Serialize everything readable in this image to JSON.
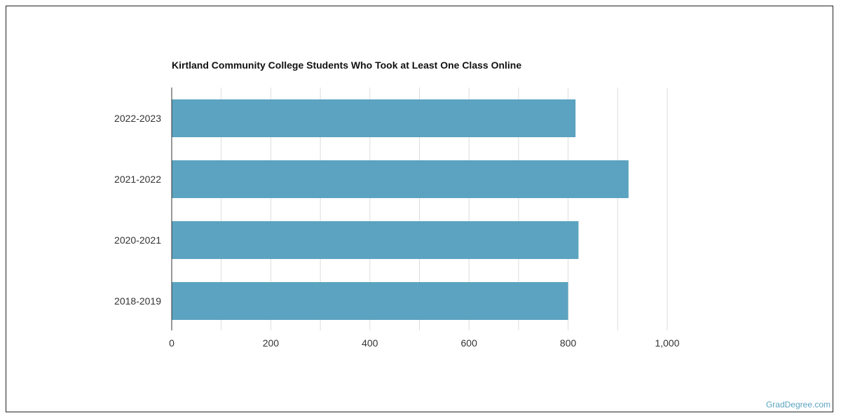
{
  "chart_data": {
    "type": "bar",
    "orientation": "horizontal",
    "title": "Kirtland Community College Students Who Took at Least One Class Online",
    "categories": [
      "2022-2023",
      "2021-2022",
      "2020-2021",
      "2018-2019"
    ],
    "values": [
      815,
      922,
      821,
      800
    ],
    "xlim": [
      0,
      1000
    ],
    "xticks": [
      0,
      200,
      400,
      600,
      800,
      1000
    ],
    "xtick_labels": [
      "0",
      "200",
      "400",
      "600",
      "800",
      "1,000"
    ],
    "xlabel": "",
    "ylabel": "",
    "grid": true,
    "bar_color": "#5ba3c0",
    "grid_color": "#dddddd"
  },
  "watermark": "GradDegree.com"
}
